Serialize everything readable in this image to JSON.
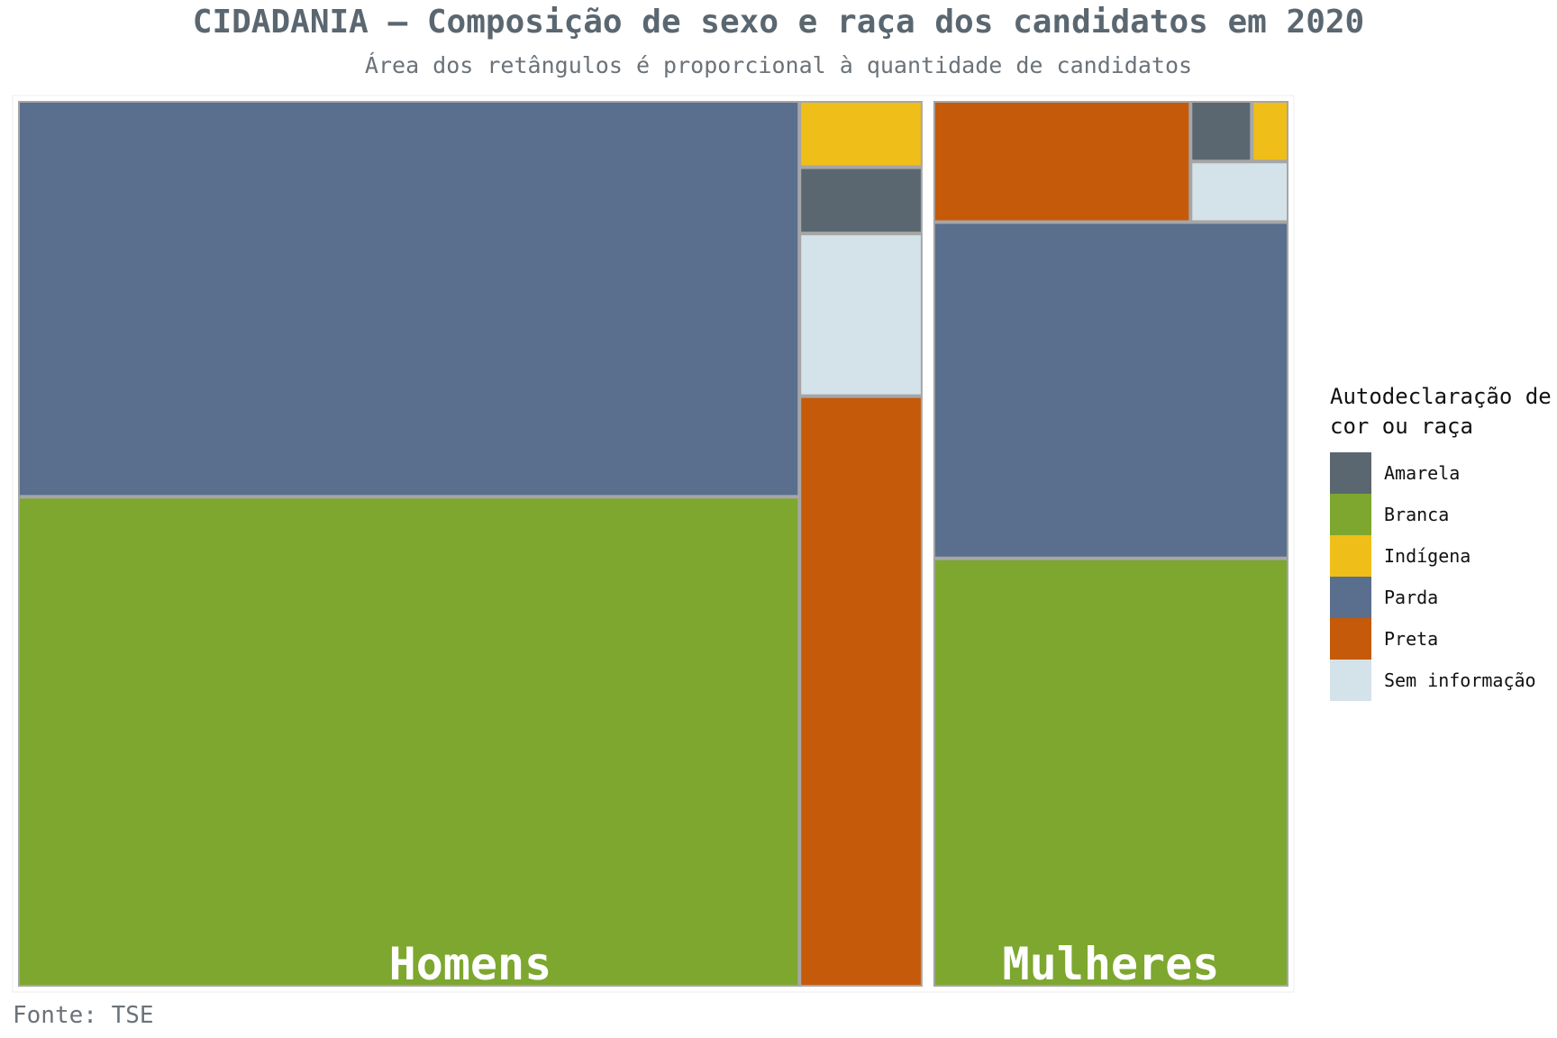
{
  "chart_data": {
    "type": "treemap",
    "title": "CIDADANIA – Composição de sexo e raça dos candidatos em 2020",
    "subtitle": "Área dos retângulos é proporcional à quantidade de candidatos",
    "caption": "Fonte: TSE",
    "legend_title": "Autodeclaração de cor ou raça",
    "legend_placement": "right",
    "categories": [
      "Amarela",
      "Branca",
      "Indígena",
      "Parda",
      "Preta",
      "Sem informação"
    ],
    "colors": {
      "Amarela": "#5b6770",
      "Branca": "#7da72e",
      "Indígena": "#f0be18",
      "Parda": "#5a6e8e",
      "Preta": "#c55a0a",
      "Sem informação": "#d4e2e9"
    },
    "groups": [
      {
        "name": "Homens",
        "values": {
          "Branca": 516,
          "Parda": 417,
          "Preta": 98,
          "Sem informação": 27,
          "Amarela": 11,
          "Indígena": 11
        }
      },
      {
        "name": "Mulheres",
        "values": {
          "Branca": 205,
          "Parda": 161,
          "Preta": 42,
          "Sem informação": 8,
          "Amarela": 5,
          "Indígena": 3
        }
      }
    ]
  }
}
